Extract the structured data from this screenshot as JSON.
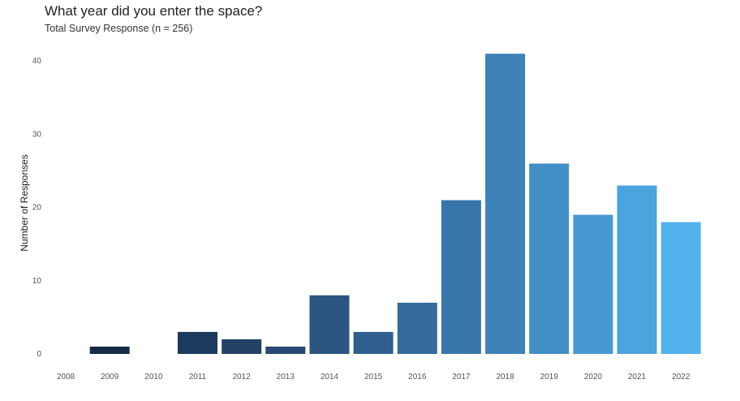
{
  "chart_data": {
    "type": "bar",
    "title": "What year did you enter the space?",
    "subtitle": "Total Survey Response (n = 256)",
    "xlabel": "",
    "ylabel": "Number of Responses",
    "categories": [
      "2008",
      "2009",
      "2010",
      "2011",
      "2012",
      "2013",
      "2014",
      "2015",
      "2016",
      "2017",
      "2018",
      "2019",
      "2020",
      "2021",
      "2022"
    ],
    "values": [
      0,
      1,
      0,
      3,
      2,
      1,
      8,
      3,
      7,
      21,
      41,
      26,
      19,
      23,
      18
    ],
    "yticks": [
      0,
      10,
      20,
      30,
      40
    ],
    "ylim": [
      0,
      42
    ],
    "grid": false,
    "colors": [
      "#13263f",
      "#162c47",
      "#19324f",
      "#1c3a5c",
      "#224266",
      "#264a72",
      "#2b5680",
      "#2f5f8e",
      "#346a9c",
      "#3876aa",
      "#3d82b8",
      "#428ec6",
      "#4799d2",
      "#4ba4de",
      "#52b0ec"
    ]
  }
}
